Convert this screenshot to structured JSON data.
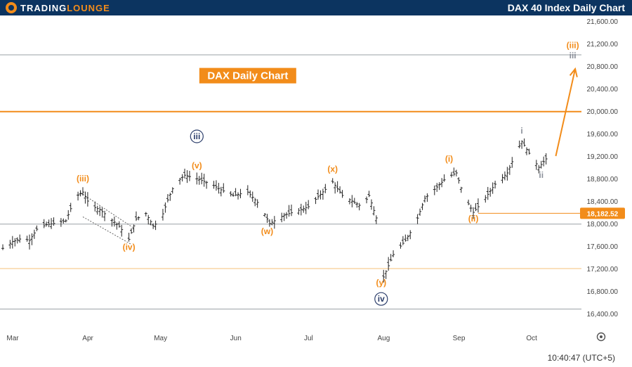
{
  "header": {
    "logo_main": "TRADING",
    "logo_accent": "LOUNGE",
    "title": "DAX 40 Index Daily Chart"
  },
  "footer": {
    "time": "10:40:47 (UTC+5)"
  },
  "icons": {
    "settings": "gear-icon"
  },
  "colors": {
    "accent": "#f28c1a",
    "header_bg": "#0c3460",
    "candles": "#222222",
    "wave_grey": "#8a8f99",
    "navy": "#2c3e6b"
  },
  "chart_data": {
    "type": "candlestick",
    "title": "DAX  Daily Chart",
    "ylim": [
      16200,
      21700
    ],
    "y_axis_position": "right",
    "y_ticks": [
      "21,600.00",
      "21,200.00",
      "20,800.00",
      "20,400.00",
      "20,000.00",
      "19,600.00",
      "19,200.00",
      "18,800.00",
      "18,400.00",
      "18,000.00",
      "17,600.00",
      "17,200.00",
      "16,800.00",
      "16,400.00"
    ],
    "x_ticks": [
      "Mar",
      "Apr",
      "May",
      "Jun",
      "Jul",
      "Aug",
      "Sep",
      "Oct"
    ],
    "x_range": [
      "2024-03-01",
      "2024-10-25"
    ],
    "x_tick_dates": [
      "2024-03-01",
      "2024-04-01",
      "2024-05-01",
      "2024-06-01",
      "2024-07-01",
      "2024-08-01",
      "2024-09-01",
      "2024-10-01"
    ],
    "price_label": "18,182.52",
    "price_label_value": 18182.52,
    "horizontal_levels": [
      {
        "value": 21000,
        "color": "#9aa0a6",
        "style": "solid-thin"
      },
      {
        "value": 19990,
        "color": "#f28c1a",
        "style": "solid-thick"
      },
      {
        "value": 17990,
        "color": "#9aa0a6",
        "style": "solid-thin"
      },
      {
        "value": 17200,
        "color": "#f6c07a",
        "style": "solid-thin"
      },
      {
        "value": 16480,
        "color": "#9aa0a6",
        "style": "solid-thin"
      }
    ],
    "series_path": [
      [
        "2024-03-01",
        17560
      ],
      [
        "2024-03-05",
        17680
      ],
      [
        "2024-03-09",
        17740
      ],
      [
        "2024-03-12",
        17700
      ],
      [
        "2024-03-15",
        17900
      ],
      [
        "2024-03-19",
        17980
      ],
      [
        "2024-03-23",
        18010
      ],
      [
        "2024-03-27",
        18050
      ],
      [
        "2024-03-31",
        18480
      ],
      [
        "2024-04-03",
        18560
      ],
      [
        "2024-04-06",
        18320
      ],
      [
        "2024-04-10",
        18250
      ],
      [
        "2024-04-14",
        18100
      ],
      [
        "2024-04-18",
        17950
      ],
      [
        "2024-04-22",
        17720
      ],
      [
        "2024-04-25",
        18080
      ],
      [
        "2024-04-29",
        18180
      ],
      [
        "2024-05-02",
        17960
      ],
      [
        "2024-05-05",
        18050
      ],
      [
        "2024-05-08",
        18420
      ],
      [
        "2024-05-11",
        18720
      ],
      [
        "2024-05-15",
        18860
      ],
      [
        "2024-05-20",
        18800
      ],
      [
        "2024-05-26",
        18700
      ],
      [
        "2024-05-30",
        18600
      ],
      [
        "2024-06-04",
        18500
      ],
      [
        "2024-06-10",
        18560
      ],
      [
        "2024-06-15",
        18330
      ],
      [
        "2024-06-19",
        18000
      ],
      [
        "2024-06-25",
        18150
      ],
      [
        "2024-06-30",
        18220
      ],
      [
        "2024-07-05",
        18300
      ],
      [
        "2024-07-10",
        18520
      ],
      [
        "2024-07-15",
        18740
      ],
      [
        "2024-07-19",
        18500
      ],
      [
        "2024-07-23",
        18400
      ],
      [
        "2024-07-27",
        18300
      ],
      [
        "2024-07-30",
        18500
      ],
      [
        "2024-08-02",
        18100
      ],
      [
        "2024-08-05",
        17050
      ],
      [
        "2024-08-09",
        17450
      ],
      [
        "2024-08-14",
        17700
      ],
      [
        "2024-08-18",
        17980
      ],
      [
        "2024-08-22",
        18450
      ],
      [
        "2024-08-27",
        18650
      ],
      [
        "2024-08-31",
        18820
      ],
      [
        "2024-09-04",
        18900
      ],
      [
        "2024-09-07",
        18500
      ],
      [
        "2024-09-11",
        18200
      ],
      [
        "2024-09-15",
        18400
      ],
      [
        "2024-09-20",
        18700
      ],
      [
        "2024-09-25",
        18900
      ],
      [
        "2024-09-29",
        19300
      ],
      [
        "2024-10-01",
        19460
      ],
      [
        "2024-10-04",
        19250
      ],
      [
        "2024-10-08",
        19000
      ],
      [
        "2024-10-11",
        19150
      ]
    ],
    "arrow": {
      "from": [
        "2024-10-15",
        19200
      ],
      "to": [
        "2024-10-23",
        20750
      ]
    },
    "box_label": {
      "text": "DAX  Daily Chart",
      "at": [
        "2024-06-10",
        20630
      ]
    },
    "wave_labels": [
      {
        "text": "(iii)",
        "color": "#f28c1a",
        "x": "2024-04-03",
        "y": 18750
      },
      {
        "text": "(iv)",
        "color": "#f28c1a",
        "x": "2024-04-22",
        "y": 17530
      },
      {
        "text": "iii",
        "color": "#2c3e6b",
        "circled": true,
        "x": "2024-05-20",
        "y": 19500
      },
      {
        "text": "(v)",
        "color": "#f28c1a",
        "x": "2024-05-20",
        "y": 18980
      },
      {
        "text": "(w)",
        "color": "#f28c1a",
        "x": "2024-06-18",
        "y": 17810
      },
      {
        "text": "(x)",
        "color": "#f28c1a",
        "x": "2024-07-15",
        "y": 18920
      },
      {
        "text": "(y)",
        "color": "#f28c1a",
        "x": "2024-08-04",
        "y": 16900
      },
      {
        "text": "iv",
        "color": "#2c3e6b",
        "circled": true,
        "x": "2024-08-04",
        "y": 16610
      },
      {
        "text": "(i)",
        "color": "#f28c1a",
        "x": "2024-09-01",
        "y": 19100
      },
      {
        "text": "(ii)",
        "color": "#f28c1a",
        "x": "2024-09-11",
        "y": 18040
      },
      {
        "text": "i",
        "color": "#8a8f99",
        "x": "2024-10-01",
        "y": 19600
      },
      {
        "text": "ii",
        "color": "#8a8f99",
        "x": "2024-10-09",
        "y": 18810
      },
      {
        "text": "(iii)",
        "color": "#f28c1a",
        "x": "2024-10-22",
        "y": 21120
      },
      {
        "text": "iii",
        "color": "#8a8f99",
        "x": "2024-10-22",
        "y": 20940
      }
    ],
    "channel": [
      {
        "from": [
          "2024-04-02",
          18550
        ],
        "to": [
          "2024-04-24",
          17920
        ]
      },
      {
        "from": [
          "2024-04-03",
          18120
        ],
        "to": [
          "2024-04-23",
          17630
        ]
      }
    ]
  }
}
